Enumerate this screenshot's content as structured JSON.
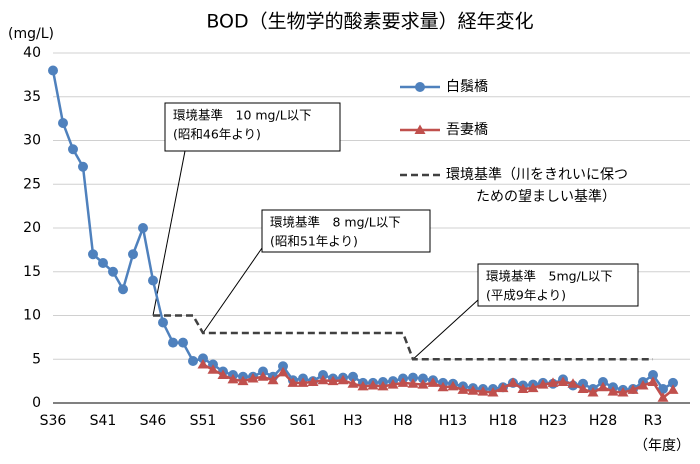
{
  "chart_data": {
    "type": "line",
    "title": "BOD（生物学的酸素要求量）経年変化",
    "y_label": "(mg/L)",
    "x_label": "（年度）",
    "categories": [
      "S36",
      null,
      null,
      null,
      null,
      "S41",
      null,
      null,
      null,
      null,
      "S46",
      null,
      null,
      null,
      null,
      "S51",
      null,
      null,
      null,
      null,
      "S56",
      null,
      null,
      null,
      null,
      "S61",
      null,
      null,
      null,
      null,
      "H3",
      null,
      null,
      null,
      null,
      "H8",
      null,
      null,
      null,
      null,
      "H13",
      null,
      null,
      null,
      null,
      "H18",
      null,
      null,
      null,
      null,
      "H23",
      null,
      null,
      null,
      null,
      "H28",
      null,
      null,
      null,
      null,
      "R3",
      null,
      null
    ],
    "ylim": [
      0,
      40
    ],
    "yticks": [
      0,
      5,
      10,
      15,
      20,
      25,
      30,
      35,
      40
    ],
    "grid": true,
    "series": [
      {
        "name": "白鬚橋",
        "color": "#4f81bd",
        "marker": "circle",
        "values": [
          38,
          32,
          29,
          27,
          17,
          16,
          15,
          13,
          17,
          20,
          14,
          9.2,
          6.9,
          6.9,
          4.8,
          5.1,
          4.4,
          3.6,
          3.2,
          3.0,
          3.0,
          3.6,
          3.0,
          4.2,
          2.6,
          2.8,
          2.5,
          3.2,
          2.8,
          2.9,
          3.0,
          2.3,
          2.3,
          2.4,
          2.5,
          2.8,
          2.9,
          2.8,
          2.6,
          2.3,
          2.2,
          1.9,
          1.7,
          1.6,
          1.6,
          1.8,
          2.3,
          2.0,
          2.1,
          2.3,
          2.2,
          2.7,
          2.0,
          2.2,
          1.6,
          2.4,
          1.8,
          1.5,
          1.6,
          2.4,
          3.2,
          1.6,
          2.3
        ]
      },
      {
        "name": "吾妻橋",
        "color": "#c0504d",
        "marker": "triangle",
        "values": [
          null,
          null,
          null,
          null,
          null,
          null,
          null,
          null,
          null,
          null,
          null,
          null,
          null,
          null,
          null,
          4.4,
          3.8,
          3.2,
          2.7,
          2.5,
          2.8,
          3.0,
          2.6,
          3.5,
          2.3,
          2.3,
          2.4,
          2.6,
          2.5,
          2.6,
          2.2,
          1.9,
          2.0,
          1.9,
          2.1,
          2.3,
          2.2,
          2.1,
          2.3,
          1.8,
          1.9,
          1.5,
          1.4,
          1.3,
          1.2,
          1.7,
          2.3,
          1.6,
          1.7,
          2.1,
          2.3,
          2.4,
          2.2,
          1.6,
          1.2,
          1.8,
          1.3,
          1.2,
          1.5,
          2.0,
          2.4,
          0.6,
          1.5
        ]
      },
      {
        "name": "環境基準（川をきれいに保つ\nための望ましい基準）",
        "color": "#404040",
        "dashed": true,
        "values": [
          null,
          null,
          null,
          null,
          null,
          null,
          null,
          null,
          null,
          null,
          10,
          10,
          10,
          10,
          10,
          8,
          8,
          8,
          8,
          8,
          8,
          8,
          8,
          8,
          8,
          8,
          8,
          8,
          8,
          8,
          8,
          8,
          8,
          8,
          8,
          8,
          5,
          5,
          5,
          5,
          5,
          5,
          5,
          5,
          5,
          5,
          5,
          5,
          5,
          5,
          5,
          5,
          5,
          5,
          5,
          5,
          5,
          5,
          5,
          5,
          5,
          null,
          null
        ]
      }
    ],
    "annotations": [
      {
        "lines": [
          "環境基準　10 mg/L以下",
          "(昭和46年より)"
        ]
      },
      {
        "lines": [
          "環境基準　8 mg/L以下",
          "(昭和51年より)"
        ]
      },
      {
        "lines": [
          "環境基準　5mg/L以下",
          "(平成9年より)"
        ]
      }
    ]
  }
}
